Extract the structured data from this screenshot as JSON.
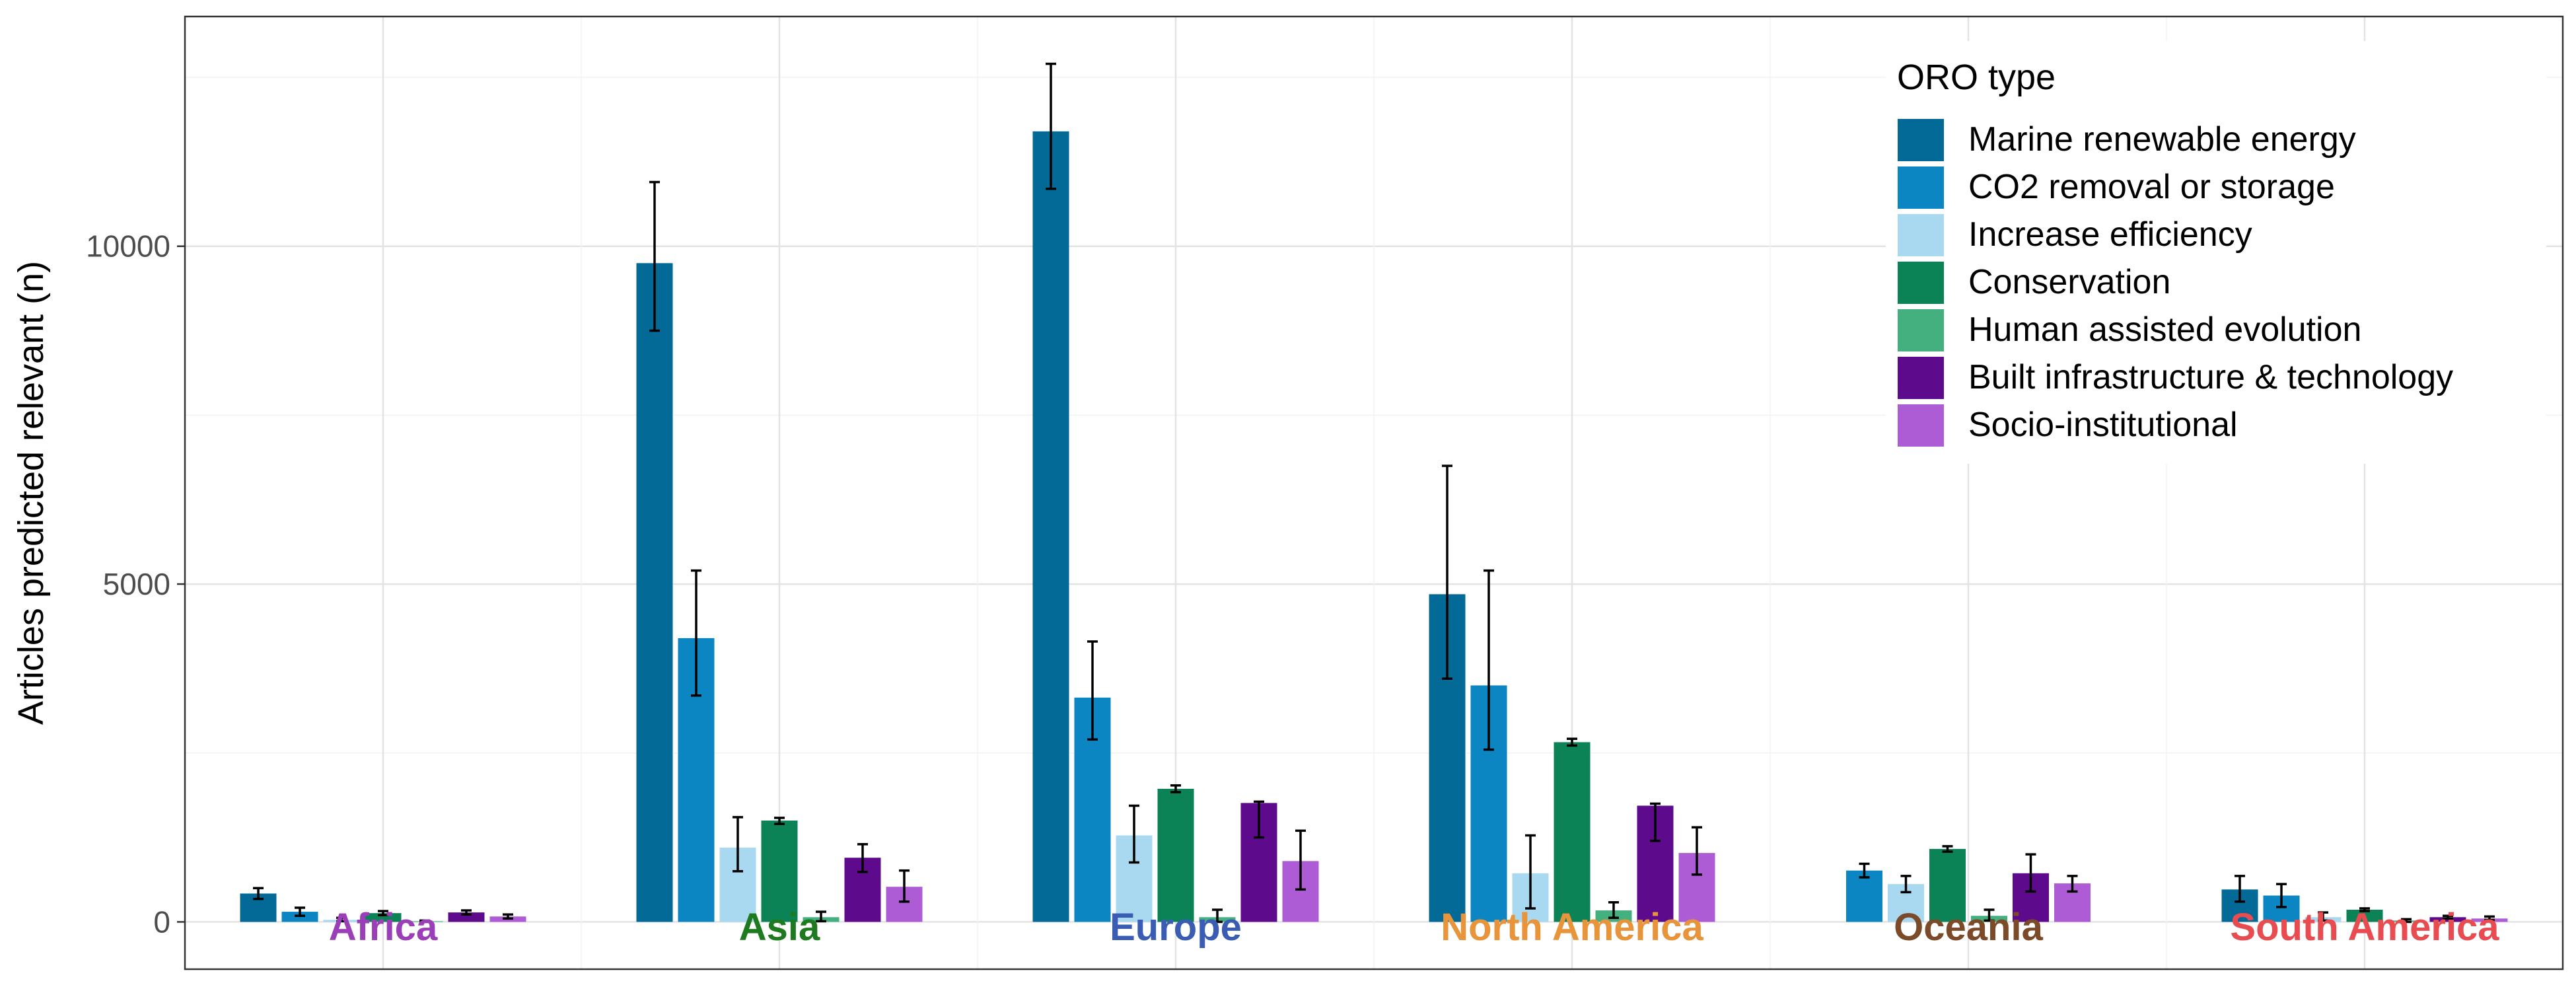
{
  "chart_data": {
    "type": "bar",
    "ylabel": "Articles predicted relevant (n)",
    "ylim": [
      -700,
      13400
    ],
    "yticks": [
      0,
      5000,
      10000
    ],
    "grid": true,
    "legend_position": "top-right",
    "legend_title": "ORO type",
    "categories": [
      "Africa",
      "Asia",
      "Europe",
      "North America",
      "Oceania",
      "South America"
    ],
    "category_colors": [
      "#9B3FB8",
      "#1E7A1E",
      "#3A5DB3",
      "#E8943A",
      "#7B4A28",
      "#E84C50"
    ],
    "series": [
      {
        "name": "Marine renewable energy",
        "color": "#036A98",
        "values": [
          420,
          9750,
          11700,
          4850,
          null,
          480
        ],
        "error_low": [
          340,
          8750,
          10850,
          3600,
          null,
          300
        ],
        "error_high": [
          500,
          10950,
          12700,
          6750,
          null,
          680
        ]
      },
      {
        "name": "CO2 removal or storage",
        "color": "#0B86C2",
        "values": [
          150,
          4200,
          3320,
          3500,
          760,
          390
        ],
        "error_low": [
          90,
          3350,
          2700,
          2550,
          660,
          220
        ],
        "error_high": [
          210,
          5200,
          4150,
          5200,
          860,
          560
        ]
      },
      {
        "name": "Increase efficiency",
        "color": "#A8D9F0",
        "values": [
          30,
          1100,
          1280,
          720,
          560,
          70
        ],
        "error_low": [
          10,
          750,
          880,
          200,
          440,
          20
        ],
        "error_high": [
          60,
          1550,
          1720,
          1280,
          680,
          140
        ]
      },
      {
        "name": "Conservation",
        "color": "#0C8356",
        "values": [
          130,
          1500,
          1970,
          2660,
          1080,
          180
        ],
        "error_low": [
          100,
          1450,
          1920,
          2610,
          1040,
          160
        ],
        "error_high": [
          160,
          1540,
          2020,
          2710,
          1120,
          200
        ]
      },
      {
        "name": "Human assisted evolution",
        "color": "#45B07F",
        "values": [
          10,
          70,
          70,
          170,
          90,
          20
        ],
        "error_low": [
          0,
          10,
          0,
          60,
          20,
          0
        ],
        "error_high": [
          20,
          150,
          180,
          290,
          180,
          40
        ]
      },
      {
        "name": "Built infrastructure & technology",
        "color": "#5E0A8C",
        "values": [
          140,
          950,
          1760,
          1720,
          720,
          70
        ],
        "error_low": [
          110,
          740,
          1250,
          1200,
          450,
          50
        ],
        "error_high": [
          170,
          1150,
          1780,
          1750,
          1000,
          90
        ]
      },
      {
        "name": "Socio-institutional",
        "color": "#AE5CD6",
        "values": [
          80,
          520,
          900,
          1020,
          570,
          50
        ],
        "error_low": [
          50,
          300,
          480,
          700,
          450,
          30
        ],
        "error_high": [
          110,
          760,
          1350,
          1400,
          680,
          80
        ]
      }
    ]
  }
}
